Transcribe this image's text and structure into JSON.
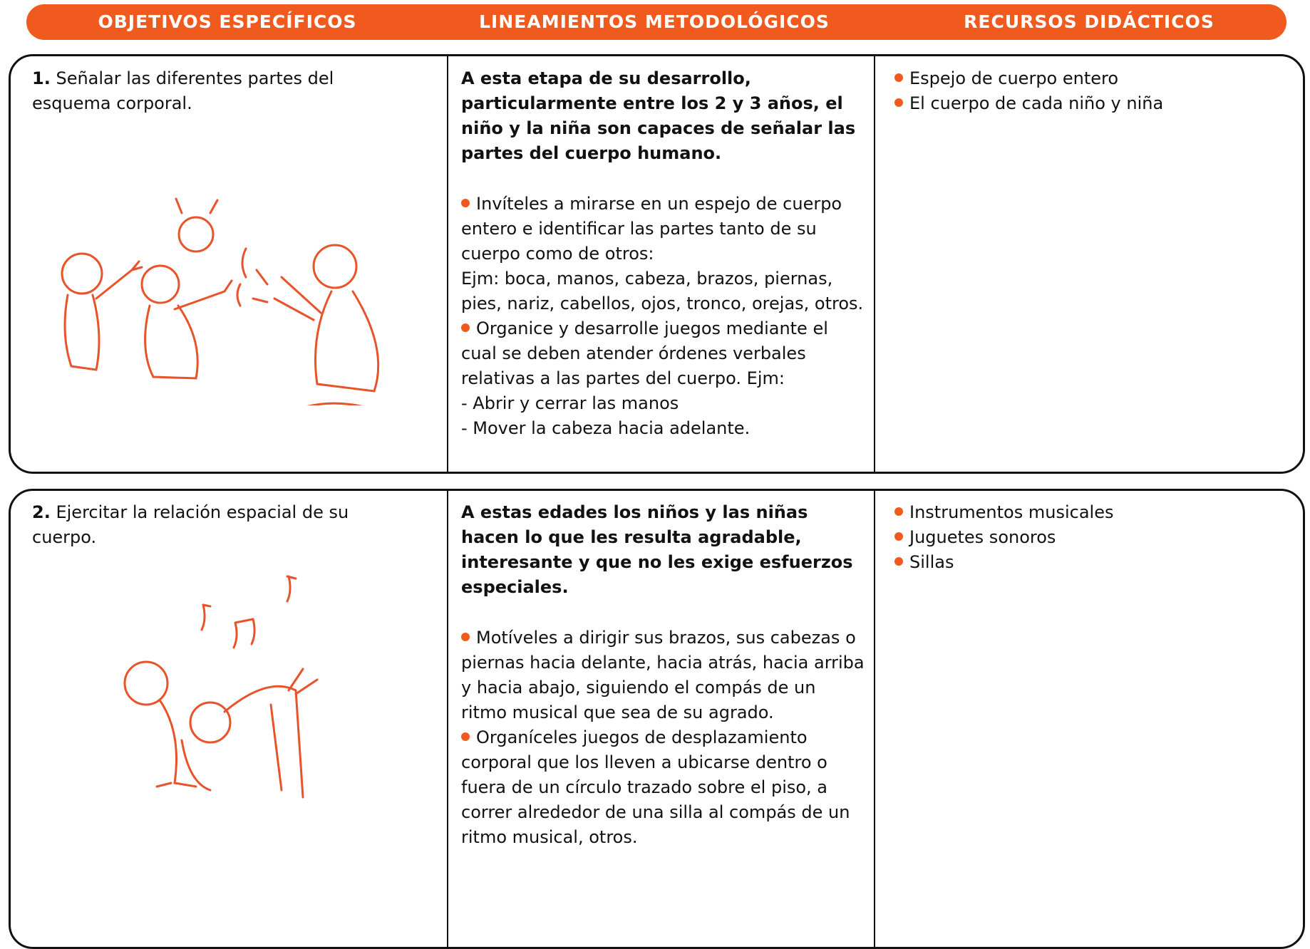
{
  "header": {
    "columns": [
      "OBJETIVOS ESPECÍFICOS",
      "LINEAMIENTOS METODOLÓGICOS",
      "RECURSOS DIDÁCTICOS"
    ]
  },
  "rows": [
    {
      "number": "1.",
      "objective": "Señalar las diferentes partes del esquema corporal.",
      "intro": "A esta etapa de su desarrollo, particularmente entre los 2 y 3 años, el niño y la niña son capaces de señalar las partes del cuerpo humano.",
      "paragraphs": [
        {
          "bullet": true,
          "text": "Invíteles a mirarse en un espejo de cuerpo entero e identificar las partes tanto de su cuerpo como de otros:"
        },
        {
          "bullet": false,
          "text": "Ejm: boca, manos, cabeza, brazos, piernas, pies, nariz, cabellos, ojos, tronco, orejas, otros."
        },
        {
          "bullet": true,
          "text": "Organice y desarrolle juegos mediante el cual se deben atender órdenes verbales relativas a las partes del cuerpo. Ejm:"
        },
        {
          "bullet": false,
          "text": "- Abrir y cerrar las manos"
        },
        {
          "bullet": false,
          "text": "- Mover la cabeza hacia adelante."
        }
      ],
      "resources": [
        "Espejo de cuerpo entero",
        "El cuerpo de cada niño y niña"
      ]
    },
    {
      "number": "2.",
      "objective": "Ejercitar la relación espacial de su cuerpo.",
      "intro": "A estas edades los niños y las niñas hacen lo que les resulta agradable, interesante y que no les exige esfuerzos especiales.",
      "paragraphs": [
        {
          "bullet": true,
          "text": "Motíveles a dirigir sus brazos, sus cabezas o piernas hacia delante, hacia atrás, hacia arriba y hacia abajo, siguiendo el compás de un ritmo musical que sea de su agrado."
        },
        {
          "bullet": true,
          "text": "Organíceles juegos de desplazamiento corporal que los lleven a ubicarse dentro o fuera de un círculo trazado sobre el piso, a correr alrededor de una silla al compás de un ritmo musical, otros."
        }
      ],
      "resources": [
        "Instrumentos musicales",
        "Juguetes sonoros",
        "Sillas"
      ]
    }
  ]
}
